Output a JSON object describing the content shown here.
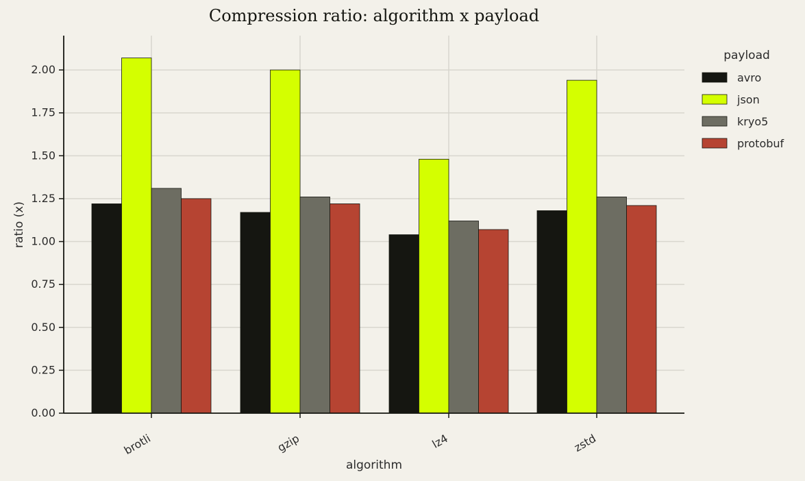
{
  "chart_data": {
    "type": "bar",
    "title": "Compression ratio: algorithm x payload",
    "xlabel": "algorithm",
    "ylabel": "ratio (x)",
    "categories": [
      "brotli",
      "gzip",
      "lz4",
      "zstd"
    ],
    "ylim": [
      0,
      2.2
    ],
    "yticks": [
      0.0,
      0.25,
      0.5,
      0.75,
      1.0,
      1.25,
      1.5,
      1.75,
      2.0
    ],
    "ytick_labels": [
      "0.00",
      "0.25",
      "0.50",
      "0.75",
      "1.00",
      "1.25",
      "1.50",
      "1.75",
      "2.00"
    ],
    "grid": true,
    "legend": {
      "title": "payload",
      "placement": "right"
    },
    "series": [
      {
        "name": "avro",
        "color": "#151611",
        "values": [
          1.22,
          1.17,
          1.04,
          1.18
        ]
      },
      {
        "name": "json",
        "color": "#d4ff00",
        "values": [
          2.07,
          2.0,
          1.48,
          1.94
        ]
      },
      {
        "name": "kryo5",
        "color": "#6d6d62",
        "values": [
          1.31,
          1.26,
          1.12,
          1.26
        ]
      },
      {
        "name": "protobuf",
        "color": "#b64432",
        "values": [
          1.25,
          1.22,
          1.07,
          1.21
        ]
      }
    ]
  }
}
